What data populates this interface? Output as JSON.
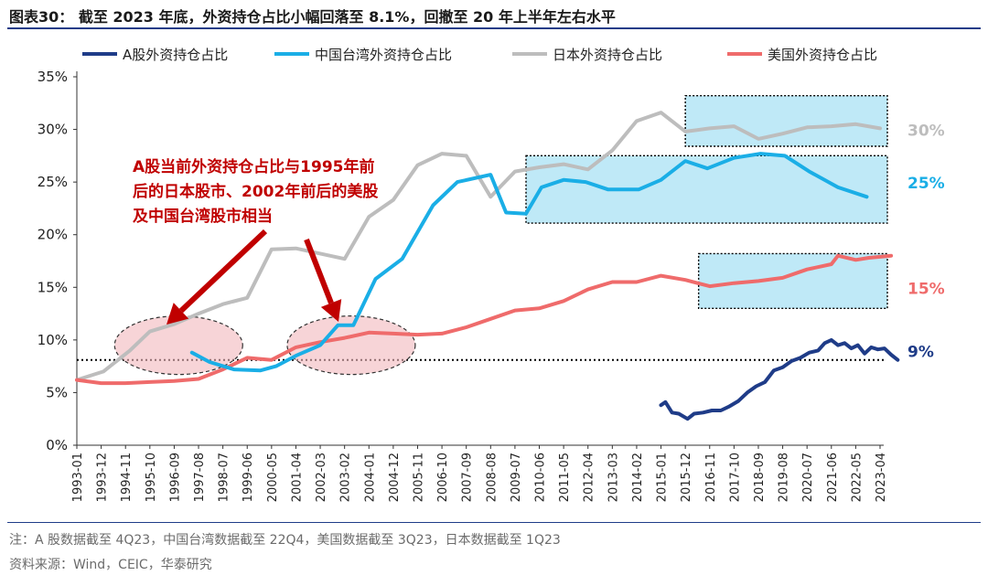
{
  "header": {
    "title": "图表30：  截至 2023 年底，外资持仓占比小幅回落至 8.1%，回撤至 20 年上半年左右水平"
  },
  "footer": {
    "note": "注：A 股数据截至 4Q23，中国台湾数据截至 22Q4，美国数据截至 3Q23，日本数据截至 1Q23",
    "source": "资料来源：Wind，CEIC，华泰研究"
  },
  "chart_data": {
    "type": "line",
    "title": "",
    "xlabel": "",
    "ylabel": "",
    "ylim": [
      0,
      0.35
    ],
    "y_ticks": [
      "0%",
      "5%",
      "10%",
      "15%",
      "20%",
      "25%",
      "30%",
      "35%"
    ],
    "x_ticks": [
      "1993-01",
      "1993-12",
      "1994-11",
      "1995-10",
      "1996-09",
      "1997-08",
      "1998-07",
      "1999-06",
      "2000-05",
      "2001-04",
      "2002-03",
      "2003-02",
      "2004-01",
      "2004-12",
      "2005-11",
      "2006-10",
      "2007-09",
      "2008-08",
      "2009-07",
      "2010-06",
      "2011-05",
      "2012-04",
      "2013-03",
      "2014-02",
      "2015-01",
      "2015-12",
      "2016-11",
      "2017-10",
      "2018-09",
      "2019-08",
      "2020-07",
      "2021-06",
      "2022-05",
      "2023-04"
    ],
    "legend_position": "top",
    "grid": false,
    "series": [
      {
        "name": "A股外资持仓占比",
        "color": "#1f3c88",
        "points": [
          [
            "2015-01",
            0.038
          ],
          [
            "2015-03",
            0.041
          ],
          [
            "2015-06",
            0.031
          ],
          [
            "2015-09",
            0.03
          ],
          [
            "2016-01",
            0.025
          ],
          [
            "2016-04",
            0.03
          ],
          [
            "2016-08",
            0.031
          ],
          [
            "2016-12",
            0.033
          ],
          [
            "2017-04",
            0.033
          ],
          [
            "2017-08",
            0.037
          ],
          [
            "2017-12",
            0.042
          ],
          [
            "2018-04",
            0.05
          ],
          [
            "2018-08",
            0.056
          ],
          [
            "2018-12",
            0.06
          ],
          [
            "2019-04",
            0.071
          ],
          [
            "2019-08",
            0.074
          ],
          [
            "2019-12",
            0.08
          ],
          [
            "2020-04",
            0.083
          ],
          [
            "2020-08",
            0.088
          ],
          [
            "2020-12",
            0.09
          ],
          [
            "2021-03",
            0.097
          ],
          [
            "2021-06",
            0.1
          ],
          [
            "2021-09",
            0.095
          ],
          [
            "2021-12",
            0.097
          ],
          [
            "2022-03",
            0.092
          ],
          [
            "2022-06",
            0.095
          ],
          [
            "2022-09",
            0.087
          ],
          [
            "2022-12",
            0.093
          ],
          [
            "2023-03",
            0.091
          ],
          [
            "2023-06",
            0.092
          ],
          [
            "2023-09",
            0.086
          ],
          [
            "2023-12",
            0.081
          ]
        ]
      },
      {
        "name": "中国台湾外资持仓占比",
        "color": "#1aaee6",
        "points": [
          [
            "1997-05",
            0.088
          ],
          [
            "1998-01",
            0.079
          ],
          [
            "1998-12",
            0.072
          ],
          [
            "1999-12",
            0.071
          ],
          [
            "2000-07",
            0.075
          ],
          [
            "2001-04",
            0.085
          ],
          [
            "2002-03",
            0.095
          ],
          [
            "2002-11",
            0.114
          ],
          [
            "2003-06",
            0.114
          ],
          [
            "2004-04",
            0.158
          ],
          [
            "2005-04",
            0.177
          ],
          [
            "2006-06",
            0.228
          ],
          [
            "2007-05",
            0.25
          ],
          [
            "2008-08",
            0.257
          ],
          [
            "2009-03",
            0.221
          ],
          [
            "2009-12",
            0.22
          ],
          [
            "2010-07",
            0.245
          ],
          [
            "2011-05",
            0.252
          ],
          [
            "2012-03",
            0.25
          ],
          [
            "2013-01",
            0.243
          ],
          [
            "2014-03",
            0.243
          ],
          [
            "2015-01",
            0.252
          ],
          [
            "2015-12",
            0.27
          ],
          [
            "2016-10",
            0.263
          ],
          [
            "2017-10",
            0.273
          ],
          [
            "2018-10",
            0.277
          ],
          [
            "2019-09",
            0.275
          ],
          [
            "2020-08",
            0.26
          ],
          [
            "2021-09",
            0.245
          ],
          [
            "2022-10",
            0.236
          ]
        ]
      },
      {
        "name": "日本外资持仓占比",
        "color": "#bdbdbd",
        "points": [
          [
            "1993-01",
            0.062
          ],
          [
            "1994-01",
            0.07
          ],
          [
            "1995-01",
            0.09
          ],
          [
            "1995-10",
            0.108
          ],
          [
            "1996-09",
            0.115
          ],
          [
            "1997-08",
            0.125
          ],
          [
            "1998-07",
            0.134
          ],
          [
            "1999-06",
            0.14
          ],
          [
            "2000-05",
            0.186
          ],
          [
            "2001-04",
            0.187
          ],
          [
            "2002-03",
            0.182
          ],
          [
            "2003-02",
            0.177
          ],
          [
            "2004-01",
            0.217
          ],
          [
            "2004-12",
            0.233
          ],
          [
            "2005-11",
            0.266
          ],
          [
            "2006-10",
            0.277
          ],
          [
            "2007-09",
            0.275
          ],
          [
            "2008-08",
            0.236
          ],
          [
            "2009-07",
            0.26
          ],
          [
            "2010-06",
            0.264
          ],
          [
            "2011-05",
            0.267
          ],
          [
            "2012-04",
            0.262
          ],
          [
            "2013-03",
            0.28
          ],
          [
            "2014-02",
            0.308
          ],
          [
            "2015-01",
            0.316
          ],
          [
            "2015-12",
            0.298
          ],
          [
            "2016-11",
            0.301
          ],
          [
            "2017-10",
            0.303
          ],
          [
            "2018-09",
            0.291
          ],
          [
            "2019-08",
            0.296
          ],
          [
            "2020-07",
            0.302
          ],
          [
            "2021-06",
            0.303
          ],
          [
            "2022-05",
            0.305
          ],
          [
            "2023-04",
            0.301
          ]
        ]
      },
      {
        "name": "美国外资持仓占比",
        "color": "#ef6b6b",
        "points": [
          [
            "1993-01",
            0.062
          ],
          [
            "1993-12",
            0.059
          ],
          [
            "1994-11",
            0.059
          ],
          [
            "1995-10",
            0.06
          ],
          [
            "1996-09",
            0.061
          ],
          [
            "1997-08",
            0.063
          ],
          [
            "1998-07",
            0.072
          ],
          [
            "1999-06",
            0.083
          ],
          [
            "2000-05",
            0.081
          ],
          [
            "2001-04",
            0.093
          ],
          [
            "2002-03",
            0.098
          ],
          [
            "2003-02",
            0.102
          ],
          [
            "2004-01",
            0.107
          ],
          [
            "2004-12",
            0.106
          ],
          [
            "2005-11",
            0.105
          ],
          [
            "2006-10",
            0.106
          ],
          [
            "2007-09",
            0.112
          ],
          [
            "2008-08",
            0.12
          ],
          [
            "2009-07",
            0.128
          ],
          [
            "2010-06",
            0.13
          ],
          [
            "2011-05",
            0.137
          ],
          [
            "2012-04",
            0.148
          ],
          [
            "2013-03",
            0.155
          ],
          [
            "2014-02",
            0.155
          ],
          [
            "2015-01",
            0.161
          ],
          [
            "2015-12",
            0.157
          ],
          [
            "2016-11",
            0.151
          ],
          [
            "2017-10",
            0.154
          ],
          [
            "2018-09",
            0.156
          ],
          [
            "2019-08",
            0.159
          ],
          [
            "2020-07",
            0.167
          ],
          [
            "2021-06",
            0.172
          ],
          [
            "2021-09",
            0.18
          ],
          [
            "2022-05",
            0.176
          ],
          [
            "2022-11",
            0.178
          ],
          [
            "2023-09",
            0.18
          ]
        ]
      }
    ],
    "horizontal_line": {
      "value": 0.081,
      "style": "dotted",
      "color": "#000000"
    },
    "end_labels": [
      {
        "text": "30%",
        "color": "#bdbdbd",
        "value": 0.3
      },
      {
        "text": "25%",
        "color": "#1aaee6",
        "value": 0.25
      },
      {
        "text": "15%",
        "color": "#ef6b6b",
        "value": 0.15
      },
      {
        "text": "9%",
        "color": "#1f3c88",
        "value": 0.09
      }
    ],
    "highlight_boxes": [
      {
        "x_from": "2015-12",
        "x_to": "2024-01",
        "y_from": 0.284,
        "y_to": 0.332
      },
      {
        "x_from": "2009-12",
        "x_to": "2024-01",
        "y_from": 0.211,
        "y_to": 0.275
      },
      {
        "x_from": "2016-06",
        "x_to": "2024-01",
        "y_from": 0.13,
        "y_to": 0.182
      }
    ],
    "annotation": {
      "lines": [
        "A股当前外资持仓占比与1995年前",
        "后的日本股市、2002年前后的美股",
        "及中国台湾股市相当"
      ],
      "color": "#c00000"
    },
    "ellipses": [
      {
        "x_center": "1996-11",
        "y_center": 0.095
      },
      {
        "x_center": "2003-05",
        "y_center": 0.095
      }
    ]
  }
}
